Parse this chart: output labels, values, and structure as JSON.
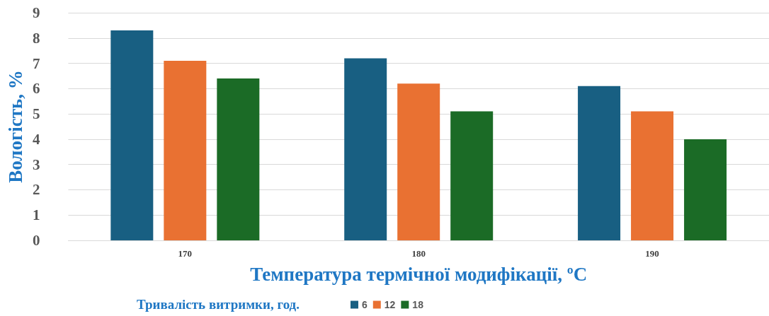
{
  "chart_data": {
    "type": "bar",
    "xlabel": "Температура термічної модифікації, ºC",
    "ylabel": "Вологість, %",
    "legend_title": "Тривалість витримки, год.",
    "categories": [
      "170",
      "180",
      "190"
    ],
    "series": [
      {
        "name": "6",
        "color": "#185f82",
        "values": [
          8.3,
          7.2,
          6.1
        ]
      },
      {
        "name": "12",
        "color": "#e97132",
        "values": [
          7.1,
          6.2,
          5.1
        ]
      },
      {
        "name": "18",
        "color": "#1b6b26",
        "values": [
          6.4,
          5.1,
          4.0
        ]
      }
    ],
    "ylim": [
      0,
      9
    ],
    "yticks": [
      0,
      1,
      2,
      3,
      4,
      5,
      6,
      7,
      8,
      9
    ],
    "grid": "y",
    "legend": "bottom"
  }
}
